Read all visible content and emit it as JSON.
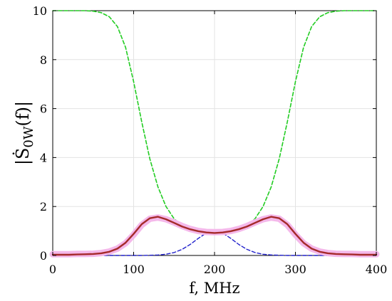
{
  "chart_data": {
    "type": "line",
    "title": "",
    "xlabel": "f, MHz",
    "ylabel_main": "|Ṡ",
    "ylabel_sub": "0W",
    "ylabel_tail": "(f)|",
    "xlim": [
      0,
      400
    ],
    "ylim": [
      0,
      10
    ],
    "xticks": [
      0,
      100,
      200,
      300,
      400
    ],
    "yticks": [
      0,
      2,
      4,
      6,
      8,
      10
    ],
    "grid": true,
    "legend": "none",
    "x": [
      0,
      10,
      20,
      30,
      40,
      50,
      60,
      70,
      80,
      90,
      100,
      110,
      120,
      130,
      140,
      150,
      160,
      170,
      180,
      190,
      200,
      210,
      220,
      230,
      240,
      250,
      260,
      270,
      280,
      290,
      300,
      310,
      320,
      330,
      340,
      350,
      360,
      370,
      380,
      390,
      400
    ],
    "series": [
      {
        "color": "#22cc22",
        "dash": "dashed",
        "width": 1.6,
        "values": [
          10,
          10,
          10,
          10,
          10,
          9.98,
          9.92,
          9.75,
          9.35,
          8.5,
          7.1,
          5.45,
          3.95,
          2.8,
          2.0,
          1.5,
          1.22,
          1.06,
          0.97,
          0.93,
          0.92,
          0.93,
          0.97,
          1.06,
          1.22,
          1.5,
          2.0,
          2.8,
          3.95,
          5.45,
          7.1,
          8.5,
          9.35,
          9.75,
          9.92,
          9.98,
          10,
          10,
          10,
          10,
          10
        ]
      },
      {
        "color": "#2222cc",
        "dash": "dashed",
        "width": 1.4,
        "values": [
          0,
          0,
          0,
          0,
          0,
          0,
          0,
          0,
          0,
          0,
          0,
          0,
          0.01,
          0.02,
          0.05,
          0.12,
          0.25,
          0.45,
          0.7,
          0.92,
          1.0,
          0.92,
          0.7,
          0.45,
          0.25,
          0.12,
          0.05,
          0.02,
          0.01,
          0,
          0,
          0,
          0,
          0,
          0,
          0,
          0,
          0,
          0,
          0,
          0
        ]
      },
      {
        "color": "#f4b8ea",
        "dash": "solid",
        "width": 9,
        "values": [
          0.05,
          0.05,
          0.05,
          0.06,
          0.06,
          0.07,
          0.1,
          0.16,
          0.28,
          0.5,
          0.85,
          1.25,
          1.5,
          1.55,
          1.48,
          1.35,
          1.2,
          1.08,
          1.0,
          0.96,
          0.95,
          0.96,
          1.0,
          1.08,
          1.2,
          1.35,
          1.48,
          1.55,
          1.5,
          1.25,
          0.85,
          0.5,
          0.28,
          0.16,
          0.1,
          0.07,
          0.06,
          0.06,
          0.05,
          0.05,
          0.05
        ]
      },
      {
        "color": "#a52a2a",
        "dash": "solid",
        "width": 2.4,
        "values": [
          0.03,
          0.03,
          0.03,
          0.04,
          0.05,
          0.06,
          0.09,
          0.15,
          0.28,
          0.52,
          0.88,
          1.28,
          1.52,
          1.58,
          1.48,
          1.33,
          1.18,
          1.07,
          0.99,
          0.94,
          0.92,
          0.94,
          0.99,
          1.07,
          1.18,
          1.33,
          1.48,
          1.58,
          1.52,
          1.28,
          0.88,
          0.52,
          0.28,
          0.15,
          0.09,
          0.06,
          0.05,
          0.04,
          0.03,
          0.03,
          0.03
        ]
      }
    ]
  }
}
